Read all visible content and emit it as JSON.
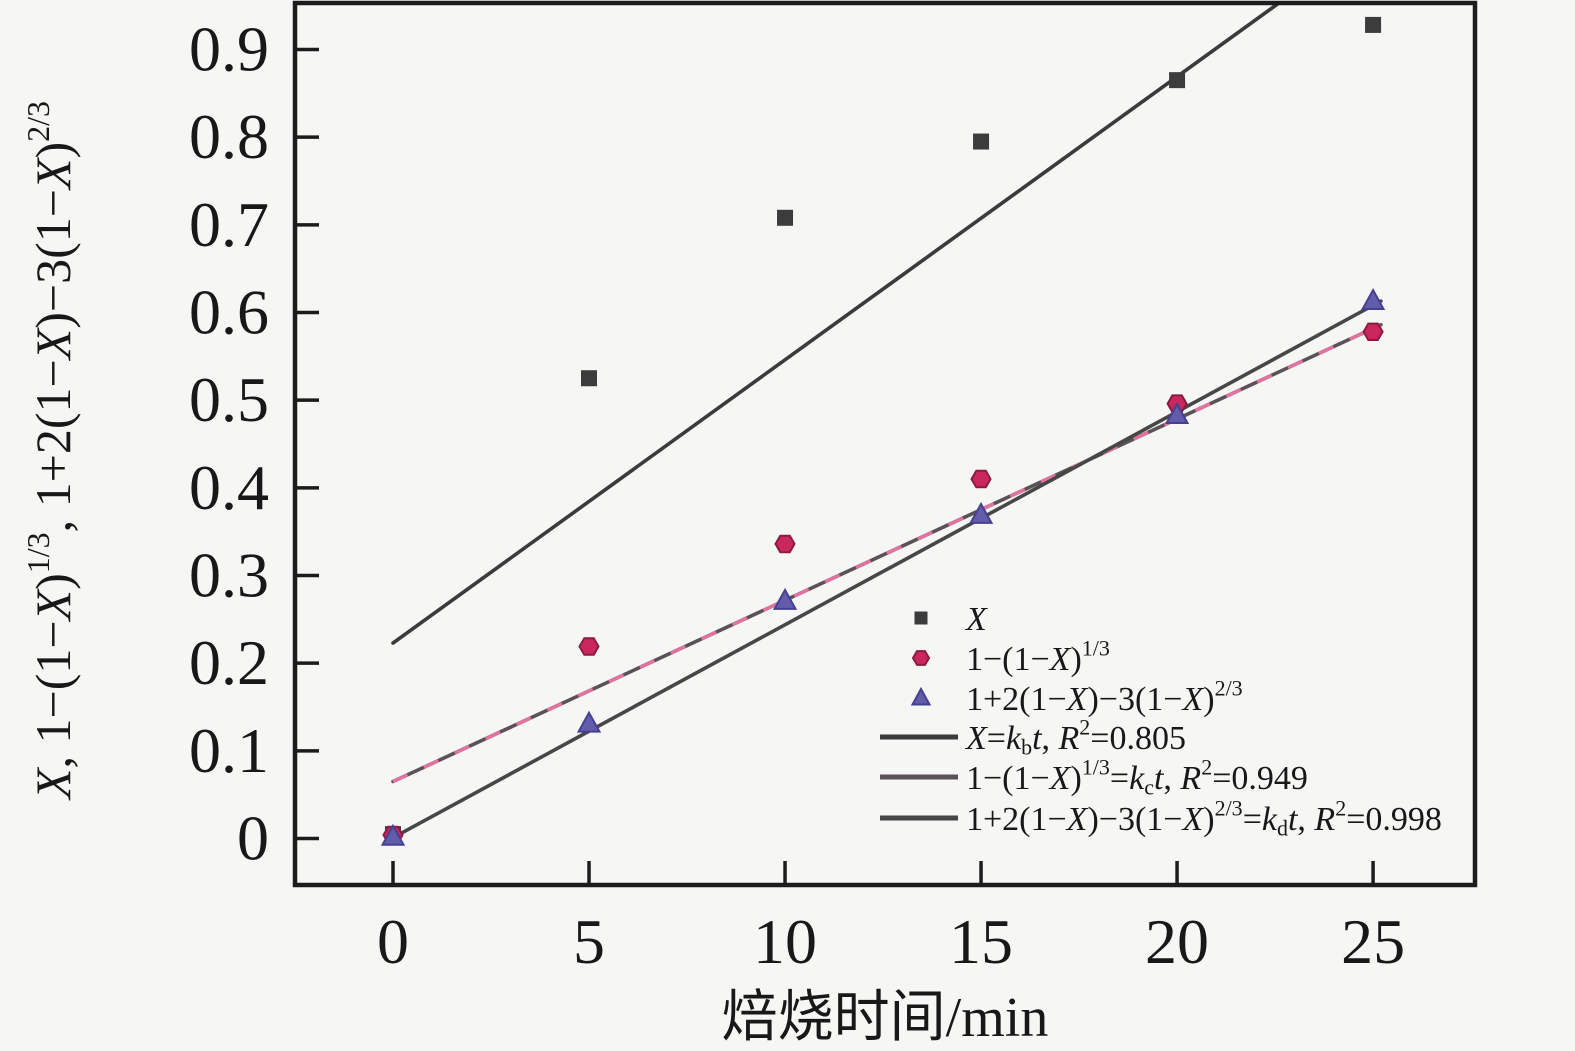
{
  "figure": {
    "background": "#f6f6f4",
    "axis_color": "#1c1c1c"
  },
  "chart_data": {
    "type": "scatter",
    "xlabel": "焙烧时间/min",
    "ylabel": "X, 1−(1−X)^{1/3}, 1+2(1−X)−3(1−X)^{2/3}",
    "xticks": [
      0,
      5,
      10,
      15,
      20,
      25
    ],
    "yticks": [
      0,
      0.1,
      0.2,
      0.3,
      0.4,
      0.5,
      0.6,
      0.7,
      0.8,
      0.9
    ],
    "ytick_labels": [
      "0",
      "0.1",
      "0.2",
      "0.3",
      "0.4",
      "0.5",
      "0.6",
      "0.7",
      "0.8",
      "0.9"
    ],
    "xtick_labels": [
      "0",
      "5",
      "10",
      "15",
      "20",
      "25"
    ],
    "xlim": [
      -2.5,
      27.6
    ],
    "ylim": [
      -0.053,
      0.953
    ],
    "grid": false,
    "x": [
      0,
      5,
      10,
      15,
      20,
      25
    ],
    "series": [
      {
        "name": "X",
        "marker": "square",
        "color": "#3c3c3c",
        "values": [
          0.005,
          0.525,
          0.708,
          0.795,
          0.865,
          0.928
        ]
      },
      {
        "name": "1−(1−X)^{1/3}",
        "marker": "hexagon",
        "color": "#c9275e",
        "stroke": "#8c1b42",
        "values": [
          0.004,
          0.219,
          0.336,
          0.41,
          0.496,
          0.578
        ]
      },
      {
        "name": "1+2(1−X)−3(1−X)^{2/3}",
        "marker": "triangle",
        "color": "#625cab",
        "stroke": "#454090",
        "values": [
          0.002,
          0.131,
          0.271,
          0.369,
          0.483,
          0.613
        ]
      }
    ],
    "fit_lines": [
      {
        "id": "b",
        "label": "X=k_{b}t, R^{2}=0.805",
        "r2": 0.805,
        "color": "#3b3b3b",
        "x1": 0,
        "y1": 0.223,
        "x2": 22.6,
        "y2": 0.953
      },
      {
        "id": "c",
        "label": "1−(1−X)^{1/3}=k_{c}t, R^{2}=0.949",
        "r2": 0.949,
        "color": "#5a5258",
        "dash_color": "#e2729f",
        "x1": 0,
        "y1": 0.065,
        "x2": 25.2,
        "y2": 0.586
      },
      {
        "id": "d",
        "label": "1+2(1−X)−3(1−X)^{2/3}=k_{d}t, R^{2}=0.998",
        "r2": 0.998,
        "color": "#474747",
        "x1": 0,
        "y1": 0.001,
        "x2": 25.2,
        "y2": 0.613
      }
    ],
    "legend_position": "lower-right-inside",
    "legend": {
      "items": [
        {
          "type": "marker",
          "marker": "square",
          "label": "X"
        },
        {
          "type": "marker",
          "marker": "hexagon",
          "label": "1−(1−X)^{1/3}"
        },
        {
          "type": "marker",
          "marker": "triangle",
          "label": "1+2(1−X)−3(1−X)^{2/3}"
        },
        {
          "type": "line",
          "line": "b",
          "label": "X=k_{b}t, R^{2}=0.805"
        },
        {
          "type": "line",
          "line": "c",
          "label": "1−(1−X)^{1/3}=k_{c}t, R^{2}=0.949"
        },
        {
          "type": "line",
          "line": "d",
          "label": "1+2(1−X)−3(1−X)^{2/3}=k_{d}t, R^{2}=0.998"
        }
      ]
    }
  }
}
